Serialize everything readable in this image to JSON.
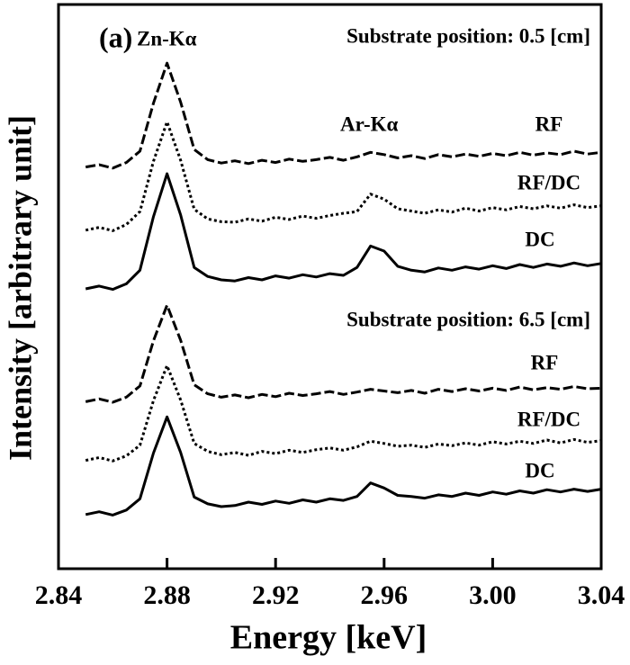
{
  "chart_data": {
    "type": "line",
    "ylabel": "Intensity [arbitrary unit]",
    "xlabel": "Energy [keV]",
    "annotations": [
      "(a)",
      "Zn-Kα",
      "Ar-Kα",
      "Substrate position: 0.5 [cm]",
      "Substrate position: 6.5 [cm]"
    ],
    "xlim": [
      2.84,
      3.04
    ],
    "xticks": [
      2.84,
      2.88,
      2.92,
      2.96,
      {
        "value": 3,
        "label": "3.00"
      },
      3.04
    ],
    "ylim": [
      0,
      100
    ],
    "x": [
      2.85,
      2.855,
      2.86,
      2.865,
      2.87,
      2.875,
      2.88,
      2.885,
      2.89,
      2.895,
      2.9,
      2.905,
      2.91,
      2.915,
      2.92,
      2.925,
      2.93,
      2.935,
      2.94,
      2.945,
      2.95,
      2.955,
      2.96,
      2.965,
      2.97,
      2.975,
      2.98,
      2.985,
      2.99,
      2.995,
      3.0,
      3.005,
      3.01,
      3.015,
      3.02,
      3.025,
      3.03,
      3.035,
      3.04
    ],
    "series": [
      {
        "name": "RF",
        "color": "#000000",
        "dash": "dashed",
        "values": [
          71.2,
          71.6,
          71.0,
          72.0,
          74.0,
          82.5,
          89.6,
          82.7,
          74.3,
          72.5,
          71.9,
          72.3,
          71.8,
          72.4,
          72.0,
          72.6,
          72.2,
          72.5,
          72.9,
          72.4,
          73.0,
          73.8,
          73.4,
          72.8,
          73.2,
          72.7,
          73.4,
          73.0,
          73.5,
          73.1,
          73.6,
          73.2,
          73.8,
          73.3,
          73.7,
          73.4,
          74.0,
          73.5,
          73.8
        ]
      },
      {
        "name": "RF/DC",
        "color": "#000000",
        "dash": "dotted",
        "values": [
          60.0,
          60.5,
          59.9,
          61.0,
          63.3,
          72.2,
          79.2,
          72.4,
          63.7,
          62.0,
          61.5,
          61.4,
          62.0,
          61.6,
          62.3,
          61.9,
          62.5,
          62.1,
          62.6,
          63.0,
          63.3,
          66.4,
          65.5,
          63.8,
          63.4,
          63.0,
          63.6,
          63.2,
          63.9,
          63.4,
          64.0,
          63.6,
          64.2,
          63.8,
          64.3,
          63.9,
          64.5,
          64.0,
          64.3
        ]
      },
      {
        "name": "DC",
        "color": "#000000",
        "dash": "solid",
        "values": [
          49.6,
          50.1,
          49.5,
          50.5,
          52.9,
          62.4,
          70.0,
          62.7,
          53.4,
          51.8,
          51.2,
          51.0,
          51.6,
          51.2,
          51.9,
          51.5,
          52.1,
          51.7,
          52.3,
          52.0,
          53.4,
          57.2,
          56.3,
          53.6,
          52.9,
          52.6,
          53.3,
          52.9,
          53.5,
          53.1,
          53.7,
          53.2,
          53.9,
          53.4,
          54.0,
          53.6,
          54.2,
          53.7,
          54.1
        ]
      },
      {
        "name": "RF",
        "color": "#000000",
        "dash": "dashed",
        "values": [
          29.6,
          30.1,
          29.5,
          30.4,
          32.4,
          40.4,
          46.7,
          40.5,
          32.6,
          31.0,
          30.4,
          30.8,
          30.3,
          30.9,
          30.5,
          31.1,
          30.7,
          31.0,
          31.4,
          30.9,
          31.3,
          31.8,
          31.5,
          31.2,
          31.6,
          31.1,
          31.8,
          31.4,
          31.9,
          31.5,
          32.0,
          31.6,
          32.2,
          31.7,
          32.1,
          31.8,
          32.3,
          31.9,
          32.0
        ]
      },
      {
        "name": "RF/DC",
        "color": "#000000",
        "dash": "dotted",
        "values": [
          19.2,
          19.7,
          19.1,
          20.0,
          21.9,
          29.8,
          36.0,
          29.9,
          22.2,
          20.8,
          20.2,
          20.6,
          20.1,
          20.8,
          20.4,
          21.0,
          20.6,
          21.1,
          21.4,
          21.0,
          21.6,
          22.6,
          22.2,
          21.7,
          21.9,
          21.5,
          22.1,
          21.8,
          22.3,
          21.9,
          22.5,
          22.1,
          22.6,
          22.2,
          22.8,
          22.3,
          22.9,
          22.4,
          22.7
        ]
      },
      {
        "name": "DC",
        "color": "#000000",
        "dash": "solid",
        "values": [
          9.6,
          10.1,
          9.5,
          10.4,
          12.4,
          20.5,
          26.9,
          20.6,
          12.7,
          11.5,
          11.0,
          11.2,
          11.8,
          11.4,
          12.0,
          11.6,
          12.2,
          11.8,
          12.4,
          12.1,
          12.8,
          15.2,
          14.3,
          13.0,
          12.8,
          12.5,
          13.1,
          12.8,
          13.4,
          13.0,
          13.6,
          13.2,
          13.8,
          13.4,
          14.0,
          13.6,
          14.1,
          13.7,
          14.1
        ]
      }
    ]
  }
}
